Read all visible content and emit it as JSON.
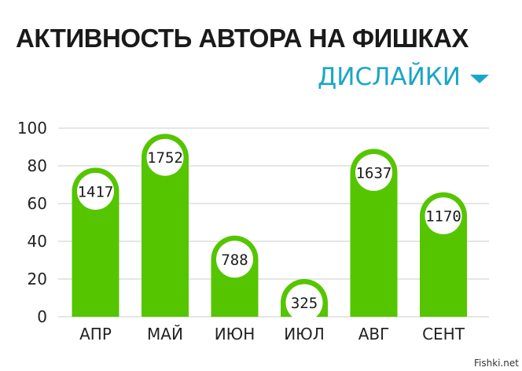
{
  "header": {
    "title": "АКТИВНОСТЬ АВТОРА НА ФИШКАХ",
    "metric_selector": "ДИСЛАЙКИ",
    "selector_icon": "caret-down-icon"
  },
  "watermark": "Fishki.net",
  "colors": {
    "bar": "#55c500",
    "accent": "#1ba6c6",
    "grid": "#dddddd"
  },
  "chart_data": {
    "type": "bar",
    "title": "АКТИВНОСТЬ АВТОРА НА ФИШКАХ",
    "xlabel": "",
    "ylabel": "",
    "ylim": [
      0,
      100
    ],
    "yticks": [
      0,
      20,
      40,
      60,
      80,
      100
    ],
    "grid": true,
    "categories": [
      "АПР",
      "МАЙ",
      "ИЮН",
      "ИЮЛ",
      "АВГ",
      "СЕНТ"
    ],
    "values": [
      79,
      97,
      43,
      20,
      89,
      66
    ],
    "data_labels": [
      "1417",
      "1752",
      "788",
      "325",
      "1637",
      "1170"
    ]
  }
}
